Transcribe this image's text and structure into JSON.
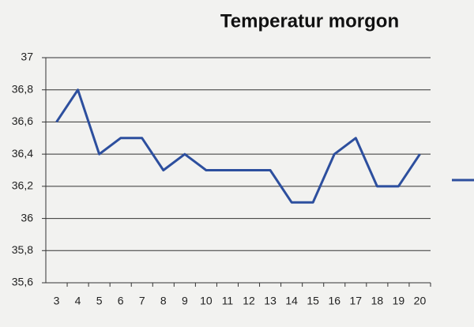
{
  "chart_data": {
    "type": "line",
    "title": "Temperatur morgon",
    "categories": [
      "3",
      "4",
      "5",
      "6",
      "7",
      "8",
      "9",
      "10",
      "11",
      "12",
      "13",
      "14",
      "15",
      "16",
      "17",
      "18",
      "19",
      "20"
    ],
    "values": [
      36.6,
      36.8,
      36.4,
      36.5,
      36.5,
      36.3,
      36.4,
      36.3,
      36.3,
      36.3,
      36.3,
      36.1,
      36.1,
      36.4,
      36.5,
      36.2,
      36.2,
      36.4
    ],
    "color": "#2d4f9e",
    "ylim": [
      35.6,
      37
    ],
    "yticks": [
      {
        "value": 35.6,
        "label": "35,6"
      },
      {
        "value": 35.8,
        "label": "35,8"
      },
      36,
      {
        "value": 36.2,
        "label": "36,2"
      },
      {
        "value": 36.4,
        "label": "36,4"
      },
      {
        "value": 36.6,
        "label": "36,6"
      },
      {
        "value": 36.8,
        "label": "36,8"
      },
      37
    ],
    "grid": true
  }
}
